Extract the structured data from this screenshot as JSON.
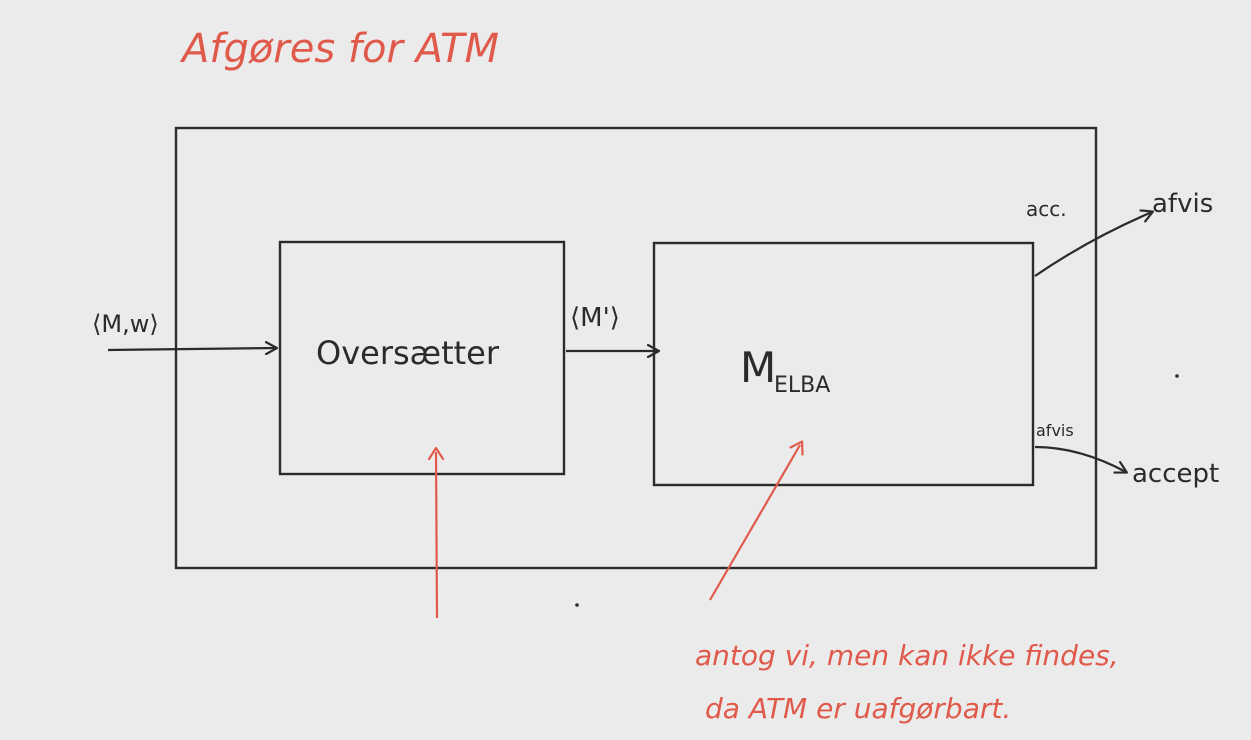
{
  "title": "Afgøres for ATM",
  "diagram": {
    "input_label": "⟨M,w⟩",
    "translator_label": "Oversætter",
    "middle_label": "⟨M'⟩",
    "melba_label_main": "M",
    "melba_label_sub": "ELBA",
    "acc_label": "acc.",
    "reject_top_label": "afvis",
    "reject_small_label": "afvis",
    "accept_label": "accept",
    "annotation_line1": "antog vi, men kan ikke findes,",
    "annotation_line2": "da ATM er uafgørbart."
  },
  "colors": {
    "ink": "#2b2b2b",
    "annotation": "#e05a4b",
    "background": "#ebebeb"
  }
}
